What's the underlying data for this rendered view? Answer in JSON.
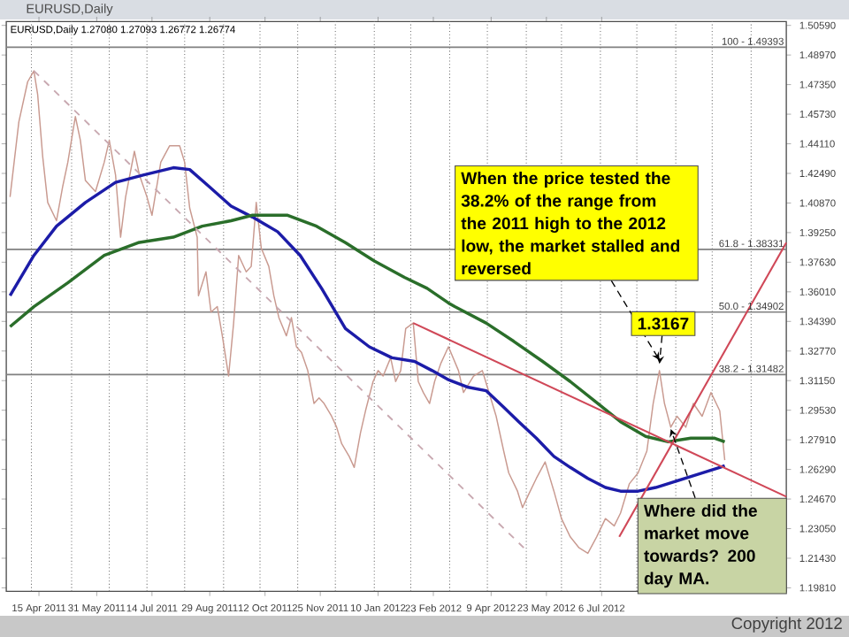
{
  "chart_data": {
    "type": "line",
    "title": "EURUSD,Daily",
    "subtitle": "EURUSD,Daily  1.27080 1.27093 1.26772 1.26774",
    "xlim": [
      "2011-03-20",
      "2012-11-30"
    ],
    "ylim": [
      1.1962,
      1.508
    ],
    "xticks": [
      {
        "value": "2011-04-15",
        "label": "15 Apr 2011"
      },
      {
        "value": "2011-05-31",
        "label": "31 May 2011"
      },
      {
        "value": "2011-07-14",
        "label": "14 Jul 2011"
      },
      {
        "value": "2011-08-29",
        "label": "29 Aug 2011"
      },
      {
        "value": "2011-10-12",
        "label": "12 Oct 2011"
      },
      {
        "value": "2011-11-25",
        "label": "25 Nov 2011"
      },
      {
        "value": "2012-01-10",
        "label": "10 Jan 2012"
      },
      {
        "value": "2012-02-23",
        "label": "23 Feb 2012"
      },
      {
        "value": "2012-04-09",
        "label": "9 Apr 2012"
      },
      {
        "value": "2012-05-23",
        "label": "23 May 2012"
      },
      {
        "value": "2012-07-06",
        "label": "6 Jul 2012"
      },
      {
        "value": "2011-04-09",
        "label": null
      },
      {
        "value": "2011-05-11",
        "label": null
      },
      {
        "value": "2011-06-10",
        "label": null
      },
      {
        "value": "2011-07-10",
        "label": null
      },
      {
        "value": "2011-08-09",
        "label": null
      },
      {
        "value": "2011-09-09",
        "label": null
      },
      {
        "value": "2011-10-08",
        "label": null
      },
      {
        "value": "2011-11-07",
        "label": null
      },
      {
        "value": "2011-12-07",
        "label": null
      },
      {
        "value": "2012-01-07",
        "label": null
      },
      {
        "value": "2012-02-05",
        "label": null
      },
      {
        "value": "2012-03-07",
        "label": null
      },
      {
        "value": "2012-04-06",
        "label": null
      },
      {
        "value": "2012-05-07",
        "label": null
      },
      {
        "value": "2012-06-04",
        "label": null
      },
      {
        "value": "2012-07-05",
        "label": null
      },
      {
        "value": "2012-08-03",
        "label": null
      },
      {
        "value": "2012-09-03",
        "label": null
      },
      {
        "value": "2012-10-02",
        "label": null
      },
      {
        "value": "2012-11-02",
        "label": null
      }
    ],
    "yticks": [
      {
        "value": 1.1981,
        "label": "1.19810"
      },
      {
        "value": 1.2143,
        "label": "1.21430"
      },
      {
        "value": 1.2305,
        "label": "1.23050"
      },
      {
        "value": 1.2467,
        "label": "1.24670"
      },
      {
        "value": 1.2629,
        "label": "1.26290"
      },
      {
        "value": 1.2791,
        "label": "1.27910"
      },
      {
        "value": 1.2953,
        "label": "1.29530"
      },
      {
        "value": 1.3115,
        "label": "1.31150"
      },
      {
        "value": 1.3277,
        "label": "1.32770"
      },
      {
        "value": 1.3439,
        "label": "1.34390"
      },
      {
        "value": 1.3601,
        "label": "1.36010"
      },
      {
        "value": 1.3763,
        "label": "1.37630"
      },
      {
        "value": 1.3925,
        "label": "1.39250"
      },
      {
        "value": 1.4087,
        "label": "1.40870"
      },
      {
        "value": 1.4249,
        "label": "1.42490"
      },
      {
        "value": 1.4411,
        "label": "1.44110"
      },
      {
        "value": 1.4573,
        "label": "1.45730"
      },
      {
        "value": 1.4735,
        "label": "1.47350"
      },
      {
        "value": 1.4897,
        "label": "1.48970"
      },
      {
        "value": 1.5059,
        "label": "1.50590"
      }
    ],
    "grid": "x",
    "marker": "none",
    "series": [
      {
        "color": "#c99a90",
        "x": [
          "2011-03-23",
          "2011-03-30",
          "2011-04-06",
          "2011-04-11",
          "2011-04-14",
          "2011-04-18",
          "2011-04-22",
          "2011-04-29",
          "2011-05-04",
          "2011-05-08",
          "2011-05-14",
          "2011-05-18",
          "2011-05-22",
          "2011-05-30",
          "2011-06-06",
          "2011-06-10",
          "2011-06-15",
          "2011-06-19",
          "2011-06-23",
          "2011-06-30",
          "2011-07-04",
          "2011-07-10",
          "2011-07-14",
          "2011-07-21",
          "2011-07-28",
          "2011-08-05",
          "2011-08-09",
          "2011-08-13",
          "2011-08-19",
          "2011-08-20",
          "2011-08-26",
          "2011-08-30",
          "2011-09-04",
          "2011-09-08",
          "2011-09-13",
          "2011-09-17",
          "2011-09-21",
          "2011-09-27",
          "2011-10-01",
          "2011-10-05",
          "2011-10-09",
          "2011-10-15",
          "2011-10-19",
          "2011-10-23",
          "2011-10-29",
          "2011-11-02",
          "2011-11-06",
          "2011-11-10",
          "2011-11-15",
          "2011-11-20",
          "2011-11-24",
          "2011-11-28",
          "2011-12-04",
          "2011-12-08",
          "2011-12-12",
          "2011-12-18",
          "2011-12-22",
          "2011-12-27",
          "2011-12-31",
          "2012-01-06",
          "2012-01-10",
          "2012-01-14",
          "2012-01-20",
          "2012-01-24",
          "2012-01-28",
          "2012-02-01",
          "2012-02-07",
          "2012-02-11",
          "2012-02-15",
          "2012-02-20",
          "2012-02-24",
          "2012-02-29",
          "2012-03-06",
          "2012-03-14",
          "2012-03-18",
          "2012-03-26",
          "2012-04-02",
          "2012-04-06",
          "2012-04-13",
          "2012-04-19",
          "2012-04-23",
          "2012-04-30",
          "2012-05-04",
          "2012-05-08",
          "2012-05-15",
          "2012-05-22",
          "2012-05-29",
          "2012-06-04",
          "2012-06-11",
          "2012-06-18",
          "2012-06-25",
          "2012-07-02",
          "2012-07-09",
          "2012-07-16",
          "2012-07-21",
          "2012-07-28",
          "2012-08-04",
          "2012-08-11",
          "2012-08-16",
          "2012-08-21",
          "2012-08-25",
          "2012-08-30",
          "2012-09-04",
          "2012-09-11",
          "2012-09-17",
          "2012-09-24",
          "2012-10-01",
          "2012-10-08",
          "2012-10-12"
        ],
        "values": [
          1.412,
          1.453,
          1.475,
          1.481,
          1.468,
          1.434,
          1.409,
          1.399,
          1.418,
          1.431,
          1.456,
          1.443,
          1.421,
          1.415,
          1.431,
          1.443,
          1.424,
          1.39,
          1.412,
          1.437,
          1.424,
          1.412,
          1.402,
          1.431,
          1.44,
          1.44,
          1.431,
          1.406,
          1.39,
          1.358,
          1.371,
          1.349,
          1.352,
          1.336,
          1.314,
          1.343,
          1.38,
          1.371,
          1.374,
          1.409,
          1.384,
          1.374,
          1.358,
          1.346,
          1.336,
          1.346,
          1.33,
          1.327,
          1.317,
          1.299,
          1.302,
          1.299,
          1.292,
          1.286,
          1.277,
          1.27,
          1.264,
          1.283,
          1.295,
          1.311,
          1.317,
          1.314,
          1.324,
          1.311,
          1.317,
          1.34,
          1.343,
          1.311,
          1.305,
          1.299,
          1.311,
          1.321,
          1.33,
          1.317,
          1.305,
          1.314,
          1.317,
          1.308,
          1.292,
          1.273,
          1.261,
          1.251,
          1.242,
          1.248,
          1.258,
          1.267,
          1.251,
          1.236,
          1.226,
          1.22,
          1.217,
          1.226,
          1.236,
          1.232,
          1.239,
          1.255,
          1.261,
          1.273,
          1.299,
          1.317,
          1.299,
          1.286,
          1.292,
          1.286,
          1.299,
          1.292,
          1.305,
          1.295,
          1.268
        ]
      },
      {
        "color": "#1c1ca8",
        "x": [
          "2011-03-23",
          "2011-04-11",
          "2011-04-29",
          "2011-05-22",
          "2011-06-15",
          "2011-07-07",
          "2011-07-31",
          "2011-08-13",
          "2011-08-28",
          "2011-09-15",
          "2011-10-02",
          "2011-10-22",
          "2011-11-09",
          "2011-11-26",
          "2011-12-15",
          "2012-01-03",
          "2012-01-21",
          "2012-02-08",
          "2012-02-22",
          "2012-03-06",
          "2012-03-21",
          "2012-04-05",
          "2012-04-19",
          "2012-05-01",
          "2012-05-15",
          "2012-05-29",
          "2012-06-11",
          "2012-06-25",
          "2012-07-09",
          "2012-07-21",
          "2012-08-04",
          "2012-08-18",
          "2012-09-01",
          "2012-09-15",
          "2012-09-29",
          "2012-10-08",
          "2012-10-12"
        ],
        "values": [
          1.358,
          1.38,
          1.396,
          1.409,
          1.42,
          1.424,
          1.428,
          1.427,
          1.418,
          1.407,
          1.401,
          1.393,
          1.38,
          1.362,
          1.34,
          1.33,
          1.324,
          1.322,
          1.317,
          1.312,
          1.308,
          1.306,
          1.297,
          1.289,
          1.28,
          1.27,
          1.264,
          1.258,
          1.253,
          1.251,
          1.251,
          1.253,
          1.256,
          1.259,
          1.262,
          1.264,
          1.265
        ]
      },
      {
        "color": "#2a6e2a",
        "x": [
          "2011-03-23",
          "2011-04-11",
          "2011-05-08",
          "2011-06-06",
          "2011-07-03",
          "2011-07-31",
          "2011-08-23",
          "2011-09-15",
          "2011-10-02",
          "2011-10-30",
          "2011-11-22",
          "2011-12-15",
          "2012-01-07",
          "2012-01-31",
          "2012-02-18",
          "2012-03-06",
          "2012-03-11",
          "2012-04-05",
          "2012-04-27",
          "2012-05-20",
          "2012-06-11",
          "2012-07-03",
          "2012-07-21",
          "2012-08-10",
          "2012-08-28",
          "2012-09-15",
          "2012-10-04",
          "2012-10-12"
        ],
        "values": [
          1.341,
          1.352,
          1.365,
          1.38,
          1.387,
          1.39,
          1.396,
          1.399,
          1.402,
          1.402,
          1.396,
          1.387,
          1.377,
          1.368,
          1.362,
          1.354,
          1.352,
          1.343,
          1.333,
          1.322,
          1.311,
          1.299,
          1.289,
          1.281,
          1.278,
          1.28,
          1.28,
          1.278
        ]
      },
      {
        "color": "#d04858",
        "x": [
          "2012-02-07",
          "2012-11-30"
        ],
        "values": [
          1.343,
          1.248
        ]
      },
      {
        "color": "#d04858",
        "x": [
          "2012-07-20",
          "2012-11-30"
        ],
        "values": [
          1.226,
          1.387
        ]
      },
      {
        "color": "#c8a8b0",
        "line_style": "dashed",
        "x": [
          "2011-04-11",
          "2012-05-05"
        ],
        "values": [
          1.481,
          1.22
        ]
      }
    ],
    "ref_lines": [
      {
        "axis": "y",
        "value": 1.49393,
        "color": "#808080"
      },
      {
        "axis": "y",
        "value": 1.38331,
        "color": "#808080"
      },
      {
        "axis": "y",
        "value": 1.34902,
        "color": "#808080"
      },
      {
        "axis": "y",
        "value": 1.31482,
        "color": "#808080"
      }
    ],
    "annotations": [
      {
        "text": "When the price tested the 38.2% of the range from the 2011 high to the 2012 low, the market stalled and reversed",
        "x": "2012-08-21",
        "y": 1.3167
      },
      {
        "text": "1.3167",
        "x": "2012-08-21",
        "y": 1.3167
      },
      {
        "text": "Where did the market move towards? 200 day MA.",
        "x": "2012-08-30",
        "y": 1.287
      },
      "Copyright 2012",
      {
        "text": "100 - 1.49393",
        "x": "2012-11-30",
        "y": 1.49393
      },
      {
        "text": "61.8 - 1.38331",
        "x": "2012-11-30",
        "y": 1.38331
      },
      {
        "text": "50.0 - 1.34902",
        "x": "2012-11-30",
        "y": 1.34902
      },
      {
        "text": "38.2 - 1.31482",
        "x": "2012-11-30",
        "y": 1.31482
      }
    ]
  }
}
